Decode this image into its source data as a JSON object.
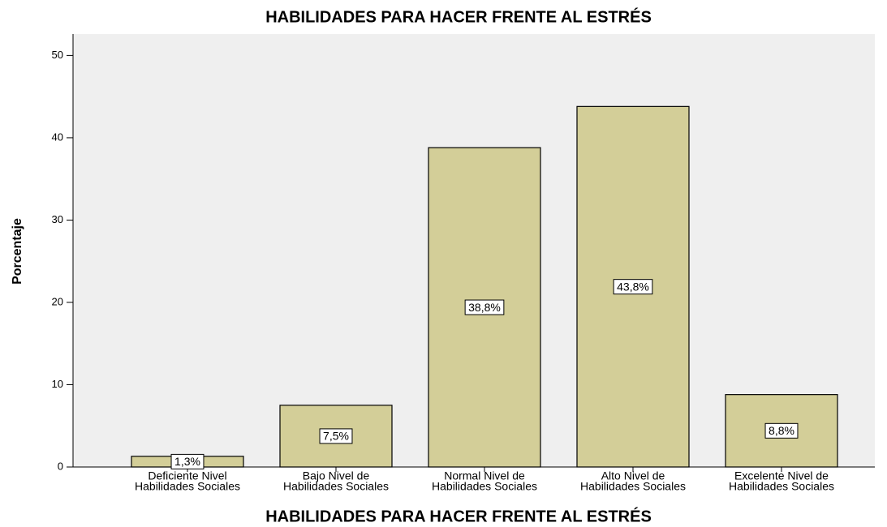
{
  "chart_data": {
    "type": "bar",
    "title": "HABILIDADES PARA HACER FRENTE AL ESTRÉS",
    "x_label": "HABILIDADES PARA HACER FRENTE AL ESTRÉS",
    "y_label": "Porcentaje",
    "categories": [
      [
        "Deficiente Nivel",
        "Habilidades Sociales"
      ],
      [
        "Bajo Nivel de",
        "Habilidades Sociales"
      ],
      [
        "Normal Nivel de",
        "Habilidades Sociales"
      ],
      [
        "Alto Nivel de",
        "Habilidades Sociales"
      ],
      [
        "Excelente Nivel de",
        "Habilidades Sociales"
      ]
    ],
    "values": [
      1.3,
      7.5,
      38.8,
      43.8,
      8.8
    ],
    "value_labels": [
      "1,3%",
      "7,5%",
      "38,8%",
      "43,8%",
      "8,8%"
    ],
    "color": "#d3ce98",
    "ylim": [
      0,
      52.6
    ],
    "yticks": [
      0,
      10,
      20,
      30,
      40,
      50
    ],
    "grid": false
  }
}
